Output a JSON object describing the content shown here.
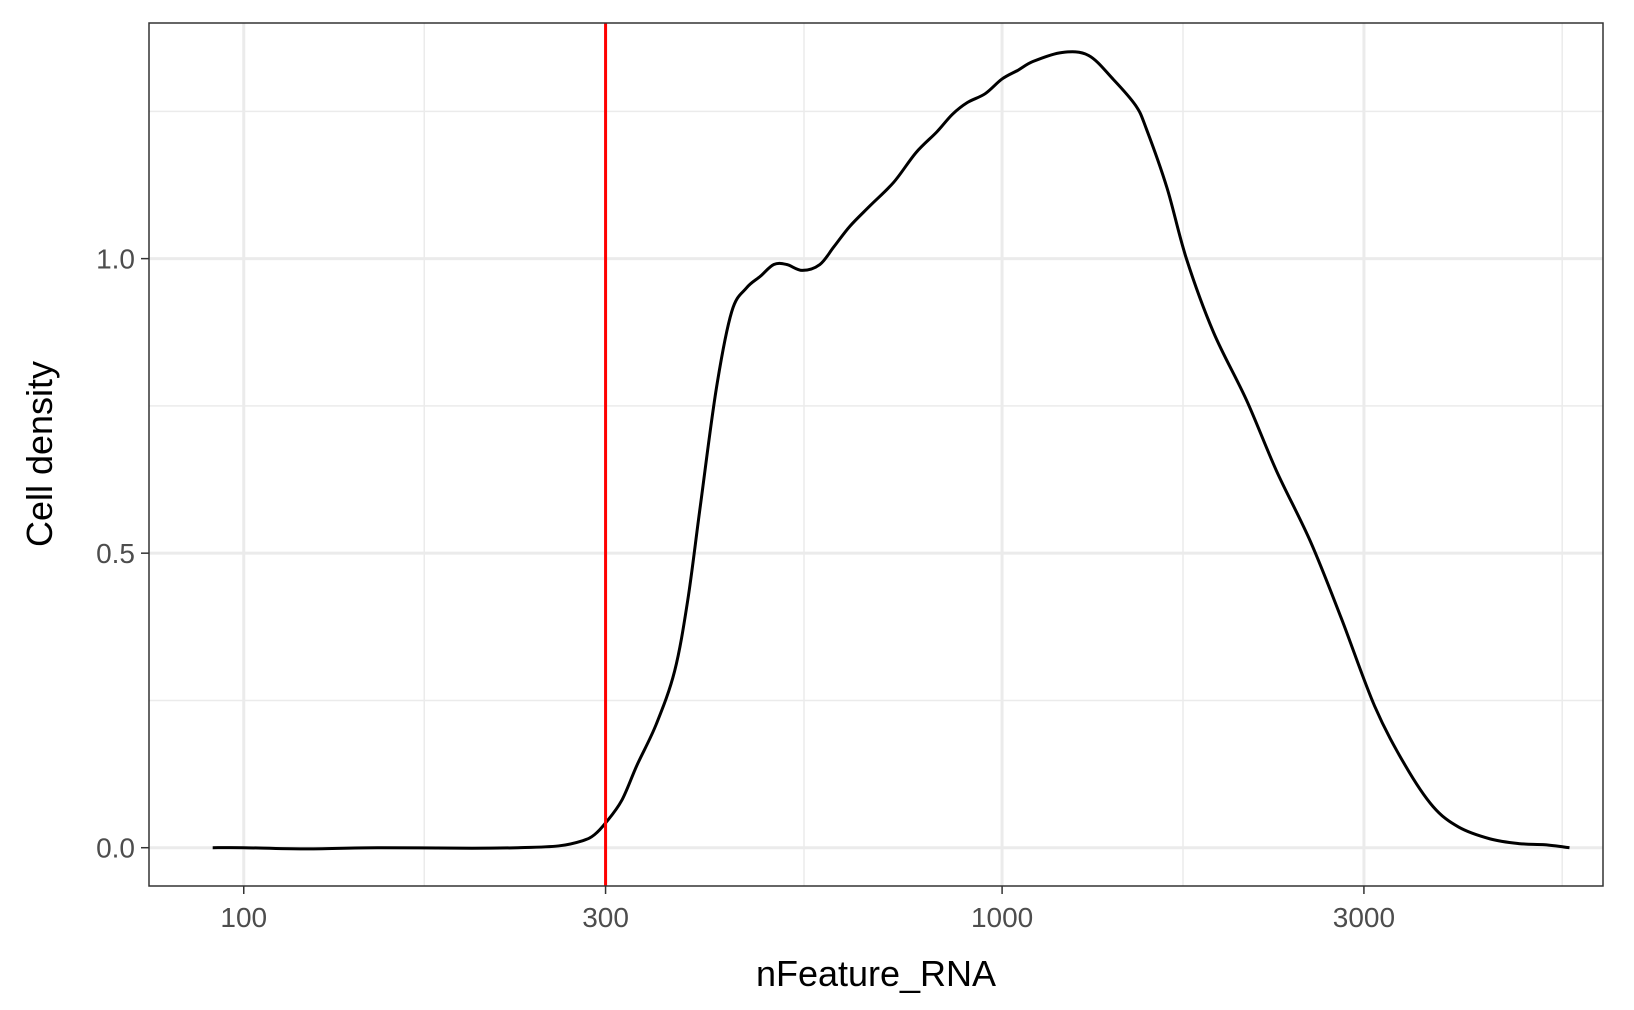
{
  "chart_data": {
    "type": "line",
    "title": "",
    "xlabel": "nFeature_RNA",
    "ylabel": "Cell density",
    "x_scale": "log10",
    "xlim": [
      75,
      6200
    ],
    "ylim": [
      -0.065,
      1.4
    ],
    "x_ticks": [
      100,
      300,
      1000,
      3000
    ],
    "x_tick_labels": [
      "100",
      "300",
      "1000",
      "3000"
    ],
    "x_minor_ticks": [
      173,
      548,
      1732,
      5477
    ],
    "y_ticks": [
      0.0,
      0.5,
      1.0
    ],
    "y_tick_labels": [
      "0.0",
      "0.5",
      "1.0"
    ],
    "y_minor_ticks": [
      0.25,
      0.75,
      1.25
    ],
    "grid": true,
    "legend": "none",
    "colors": {
      "density_line": "#000000",
      "threshold_line": "#ff0000",
      "grid": "#ebebeb",
      "panel_border": "#333333"
    },
    "threshold": {
      "x": 300
    },
    "series": [
      {
        "x": [
          91,
          100,
          120,
          150,
          200,
          230,
          260,
          280,
          290,
          300,
          315,
          330,
          350,
          370,
          385,
          400,
          420,
          440,
          460,
          480,
          500,
          520,
          545,
          575,
          600,
          630,
          670,
          720,
          770,
          820,
          860,
          900,
          950,
          1000,
          1050,
          1100,
          1200,
          1300,
          1400,
          1500,
          1550,
          1650,
          1750,
          1900,
          2100,
          2300,
          2550,
          2800,
          3100,
          3400,
          3700,
          4000,
          4400,
          4800,
          5200,
          5600
        ],
        "y": [
          0.0,
          0.0,
          -0.002,
          0.0,
          -0.001,
          0.0,
          0.003,
          0.012,
          0.022,
          0.042,
          0.08,
          0.14,
          0.21,
          0.3,
          0.42,
          0.58,
          0.78,
          0.91,
          0.95,
          0.97,
          0.99,
          0.99,
          0.98,
          0.99,
          1.02,
          1.055,
          1.09,
          1.13,
          1.18,
          1.215,
          1.245,
          1.265,
          1.28,
          1.305,
          1.32,
          1.335,
          1.35,
          1.345,
          1.305,
          1.26,
          1.22,
          1.12,
          1.0,
          0.875,
          0.76,
          0.64,
          0.52,
          0.39,
          0.24,
          0.14,
          0.07,
          0.035,
          0.015,
          0.007,
          0.005,
          0.0
        ]
      }
    ]
  }
}
